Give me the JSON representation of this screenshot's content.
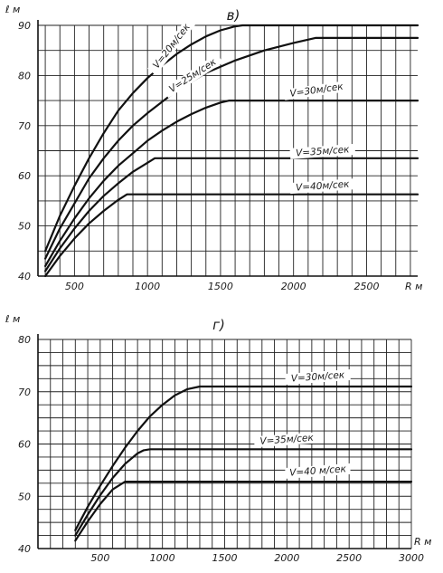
{
  "chart_data": [
    {
      "type": "line",
      "panel_label": "в)",
      "ylabel": "ℓ м",
      "xlabel": "R м",
      "xlim": [
        250,
        2850
      ],
      "ylim": [
        40,
        90
      ],
      "xticks": [
        500,
        1000,
        1500,
        2000,
        2500
      ],
      "yticks": [
        40,
        50,
        60,
        70,
        80,
        90
      ],
      "grid": true,
      "series": [
        {
          "name": "V=20м/сек",
          "label_x": 1180,
          "label_y": 85.5,
          "label_angle": -52,
          "x": [
            300,
            400,
            500,
            600,
            700,
            800,
            900,
            1000,
            1100,
            1200,
            1300,
            1400,
            1500,
            1600,
            1650,
            2850
          ],
          "y": [
            45,
            52,
            58,
            63.5,
            68.5,
            73,
            76.5,
            79.5,
            82,
            84.3,
            86.2,
            87.8,
            89,
            89.8,
            90,
            90
          ]
        },
        {
          "name": "V=25м/сек",
          "label_x": 1320,
          "label_y": 79.5,
          "label_angle": -33,
          "x": [
            300,
            400,
            500,
            600,
            700,
            800,
            900,
            1000,
            1200,
            1400,
            1600,
            1800,
            2000,
            2150,
            2850
          ],
          "y": [
            43.5,
            49.5,
            54.5,
            59.5,
            63.5,
            67,
            70,
            72.5,
            77,
            80.5,
            83,
            85,
            86.5,
            87.5,
            87.5
          ]
        },
        {
          "name": "V=30м/сек",
          "label_x": 2160,
          "label_y": 76.5,
          "label_angle": -8,
          "x": [
            300,
            400,
            500,
            600,
            700,
            800,
            900,
            1000,
            1100,
            1200,
            1300,
            1400,
            1500,
            1560,
            2850
          ],
          "y": [
            42,
            47,
            51.5,
            55.5,
            59,
            62,
            64.5,
            67,
            69,
            70.8,
            72.3,
            73.6,
            74.6,
            75,
            75
          ]
        },
        {
          "name": "V=35м/сек",
          "label_x": 2200,
          "label_y": 64.3,
          "label_angle": -4,
          "x": [
            300,
            400,
            500,
            600,
            700,
            800,
            900,
            1000,
            1050,
            2850
          ],
          "y": [
            41,
            45.5,
            49.5,
            53,
            56,
            58.5,
            60.8,
            62.6,
            63.5,
            63.5
          ]
        },
        {
          "name": "V=40м/сек",
          "label_x": 2200,
          "label_y": 57.4,
          "label_angle": -4,
          "x": [
            300,
            400,
            500,
            600,
            700,
            800,
            860,
            2850
          ],
          "y": [
            40,
            44,
            47.5,
            50.5,
            53,
            55.2,
            56.3,
            56.3
          ]
        }
      ]
    },
    {
      "type": "line",
      "panel_label": "г)",
      "ylabel": "ℓ м",
      "xlabel": "R м",
      "xlim": [
        0,
        3000
      ],
      "ylim": [
        40,
        80
      ],
      "xticks": [
        500,
        1000,
        1500,
        2000,
        2500,
        3000
      ],
      "yticks": [
        40,
        50,
        60,
        70,
        80
      ],
      "grid": true,
      "series": [
        {
          "name": "V=30м/сек",
          "label_x": 2250,
          "label_y": 72.3,
          "label_angle": -4,
          "x": [
            300,
            400,
            500,
            600,
            700,
            800,
            900,
            1000,
            1100,
            1200,
            1300,
            3000
          ],
          "y": [
            43.5,
            48,
            52,
            55.8,
            59.3,
            62.5,
            65.3,
            67.5,
            69.3,
            70.5,
            71,
            71
          ]
        },
        {
          "name": "V=35м/сек",
          "label_x": 2000,
          "label_y": 60.3,
          "label_angle": -4,
          "x": [
            300,
            400,
            500,
            600,
            700,
            800,
            850,
            900,
            3000
          ],
          "y": [
            42.5,
            46.5,
            50.2,
            53.5,
            56.2,
            58.2,
            58.8,
            59,
            59
          ]
        },
        {
          "name": "V=40 м/сек",
          "label_x": 2250,
          "label_y": 54.3,
          "label_angle": -4,
          "x": [
            300,
            400,
            500,
            600,
            700,
            3000
          ],
          "y": [
            41.5,
            45.2,
            48.5,
            51.3,
            52.8,
            52.8
          ]
        }
      ]
    }
  ]
}
